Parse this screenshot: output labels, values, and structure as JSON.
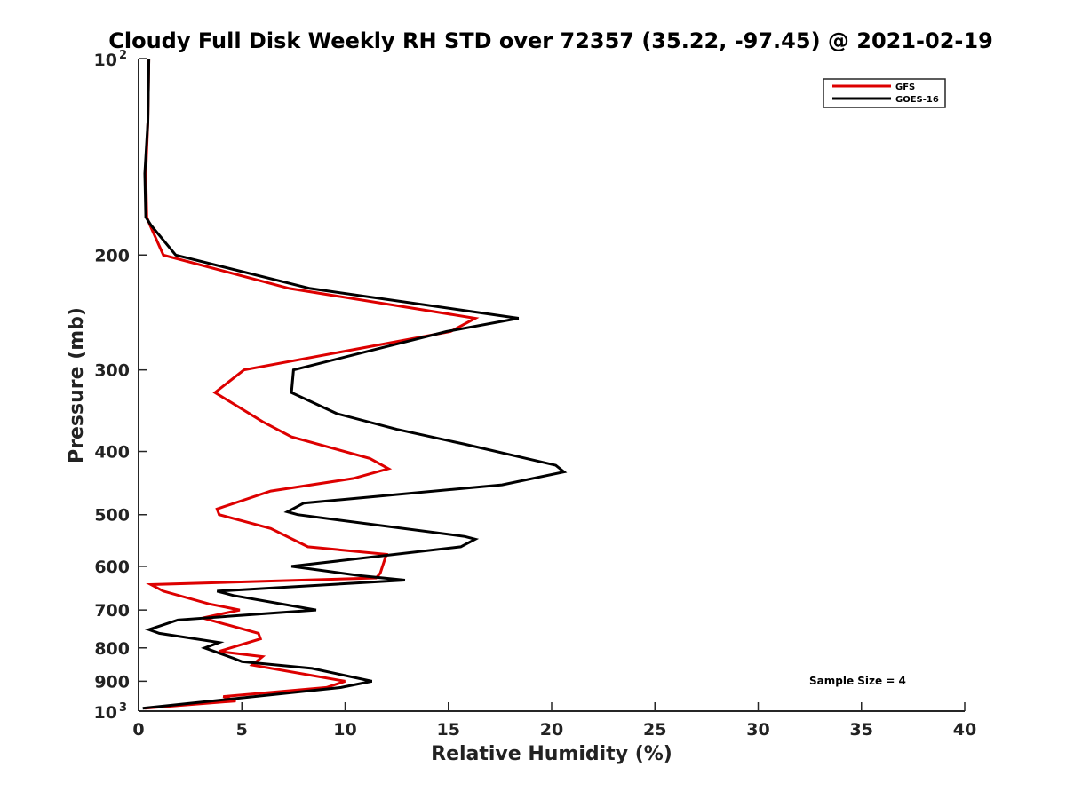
{
  "chart_data": {
    "type": "line",
    "title": "Cloudy Full Disk Weekly RH STD over 72357 (35.22, -97.45) @ 2021-02-19",
    "xlabel": "Relative Humidity (%)",
    "ylabel": "Pressure (mb)",
    "xlim": [
      0,
      40
    ],
    "ylim": [
      100,
      1000
    ],
    "y_scale": "log",
    "y_reversed": true,
    "grid": false,
    "legend_position": "top-right",
    "x_ticks": [
      "0",
      "5",
      "10",
      "15",
      "20",
      "25",
      "30",
      "35",
      "40"
    ],
    "y_ticks": [
      {
        "value": 100,
        "base": "10",
        "exp": "2"
      },
      {
        "value": 200,
        "label": "200"
      },
      {
        "value": 300,
        "label": "300"
      },
      {
        "value": 400,
        "label": "400"
      },
      {
        "value": 500,
        "label": "500"
      },
      {
        "value": 600,
        "label": "600"
      },
      {
        "value": 700,
        "label": "700"
      },
      {
        "value": 800,
        "label": "800"
      },
      {
        "value": 900,
        "label": "900"
      },
      {
        "value": 1000,
        "base": "10",
        "exp": "3"
      }
    ],
    "annotation": "Sample Size = 4",
    "series": [
      {
        "name": "GFS",
        "color": "#dd0000",
        "points": [
          [
            0.5,
            100
          ],
          [
            0.45,
            125
          ],
          [
            0.35,
            150
          ],
          [
            0.4,
            175
          ],
          [
            0.55,
            180
          ],
          [
            1.2,
            200
          ],
          [
            7.3,
            225
          ],
          [
            16.3,
            250
          ],
          [
            15.1,
            262
          ],
          [
            5.1,
            300
          ],
          [
            3.7,
            325
          ],
          [
            6.0,
            360
          ],
          [
            7.4,
            380
          ],
          [
            11.2,
            410
          ],
          [
            12.1,
            425
          ],
          [
            10.4,
            440
          ],
          [
            6.4,
            460
          ],
          [
            3.8,
            490
          ],
          [
            3.9,
            500
          ],
          [
            6.4,
            525
          ],
          [
            8.2,
            560
          ],
          [
            12.0,
            575
          ],
          [
            11.7,
            615
          ],
          [
            11.5,
            625
          ],
          [
            0.6,
            640
          ],
          [
            1.2,
            655
          ],
          [
            3.4,
            685
          ],
          [
            4.9,
            700
          ],
          [
            3.1,
            720
          ],
          [
            5.8,
            760
          ],
          [
            5.9,
            775
          ],
          [
            3.9,
            810
          ],
          [
            6.0,
            825
          ],
          [
            5.9,
            830
          ],
          [
            5.5,
            850
          ],
          [
            10.0,
            900
          ],
          [
            9.1,
            920
          ],
          [
            4.1,
            950
          ],
          [
            4.7,
            965
          ],
          [
            0.3,
            990
          ]
        ]
      },
      {
        "name": "GOES-16",
        "color": "#000000",
        "points": [
          [
            0.5,
            100
          ],
          [
            0.45,
            125
          ],
          [
            0.3,
            150
          ],
          [
            0.35,
            175
          ],
          [
            0.6,
            180
          ],
          [
            1.8,
            200
          ],
          [
            8.3,
            225
          ],
          [
            18.4,
            250
          ],
          [
            14.9,
            262
          ],
          [
            7.5,
            300
          ],
          [
            7.4,
            325
          ],
          [
            9.6,
            350
          ],
          [
            12.5,
            370
          ],
          [
            15.8,
            390
          ],
          [
            20.2,
            420
          ],
          [
            20.6,
            430
          ],
          [
            17.6,
            450
          ],
          [
            8.0,
            480
          ],
          [
            7.2,
            495
          ],
          [
            7.7,
            500
          ],
          [
            15.8,
            540
          ],
          [
            16.3,
            545
          ],
          [
            15.6,
            560
          ],
          [
            7.4,
            600
          ],
          [
            10.7,
            620
          ],
          [
            12.9,
            630
          ],
          [
            3.8,
            655
          ],
          [
            4.6,
            665
          ],
          [
            8.6,
            700
          ],
          [
            1.9,
            725
          ],
          [
            0.5,
            750
          ],
          [
            1.0,
            760
          ],
          [
            3.9,
            785
          ],
          [
            3.2,
            800
          ],
          [
            4.6,
            830
          ],
          [
            5.0,
            840
          ],
          [
            8.4,
            860
          ],
          [
            11.3,
            900
          ],
          [
            9.8,
            920
          ],
          [
            0.2,
            990
          ]
        ]
      }
    ]
  }
}
